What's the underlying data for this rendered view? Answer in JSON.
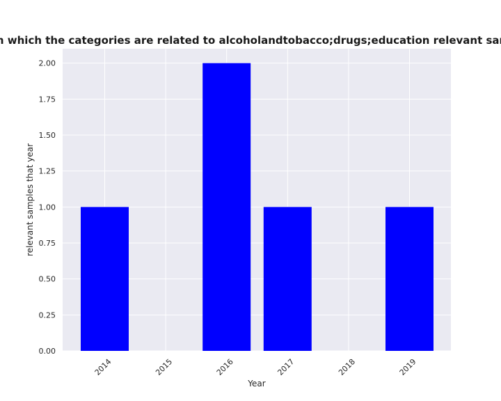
{
  "chart_data": {
    "type": "bar",
    "title": "Number of samples with reports in which the categories are related to alcoholandtobacco;drugs;education relevant samples that year in privacy policies",
    "xlabel": "Year",
    "ylabel": "relevant samples that year",
    "categories": [
      "2014",
      "2015",
      "2016",
      "2017",
      "2018",
      "2019"
    ],
    "values": [
      1,
      0,
      2,
      1,
      0,
      1
    ],
    "ylim": [
      0,
      2.1
    ],
    "yticks": [
      "0.00",
      "0.25",
      "0.50",
      "0.75",
      "1.00",
      "1.25",
      "1.50",
      "1.75",
      "2.00"
    ],
    "grid": true,
    "bar_color": "#0000ff",
    "background_color": "#eaeaf2"
  }
}
